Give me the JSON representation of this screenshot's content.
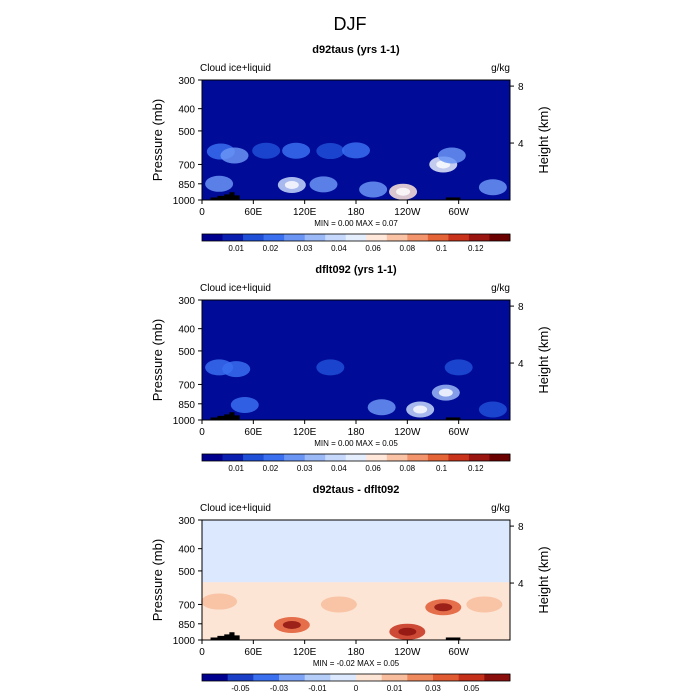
{
  "title": "DJF",
  "colors": {
    "blue_cmap": [
      "#00008f",
      "#0a1fb0",
      "#1f4fd6",
      "#3a6ff0",
      "#6a95f5",
      "#9bb8f7",
      "#c6d8fb",
      "#e5eefd",
      "#ffe7da",
      "#fbc3a6",
      "#f2946c",
      "#e46438",
      "#c9331b",
      "#9a1410",
      "#6a0000"
    ],
    "diff_cmap": [
      "#00008f",
      "#1a3fc6",
      "#3a6ff0",
      "#7da4f6",
      "#b4cdf9",
      "#dbe8fd",
      "#fde5d5",
      "#f8bd9c",
      "#ef8a5f",
      "#e05a32",
      "#c4301a",
      "#8a0f0c"
    ]
  },
  "chart_data": [
    {
      "type": "heatmap",
      "title": "d92taus (yrs 1-1)",
      "left_label": "Cloud ice+liquid",
      "right_label": "g/kg",
      "ylabel": "Pressure (mb)",
      "ylabel_right": "Height (km)",
      "x_ticks": [
        "0",
        "60E",
        "120E",
        "180",
        "120W",
        "60W"
      ],
      "x_values": [
        0,
        60,
        120,
        180,
        240,
        300
      ],
      "xlim": [
        0,
        360
      ],
      "y_ticks": [
        "300",
        "400",
        "500",
        "700",
        "850",
        "1000"
      ],
      "y_values": [
        300,
        400,
        500,
        700,
        850,
        1000
      ],
      "ylim": [
        1000,
        300
      ],
      "height_ticks": [
        "8",
        "4"
      ],
      "height_values": [
        8,
        4
      ],
      "stats": "MIN =     0.00   MAX =     0.07",
      "colorbar_labels": [
        "0.01",
        "0.02",
        "0.03",
        "0.04",
        "0.06",
        "0.08",
        "0.1",
        "0.12"
      ],
      "palette": "blue_cmap",
      "features": [
        {
          "lon": 22,
          "p": 615,
          "v": 0.028
        },
        {
          "lon": 38,
          "p": 640,
          "v": 0.03
        },
        {
          "lon": 75,
          "p": 610,
          "v": 0.02
        },
        {
          "lon": 110,
          "p": 610,
          "v": 0.022
        },
        {
          "lon": 150,
          "p": 612,
          "v": 0.02
        },
        {
          "lon": 180,
          "p": 608,
          "v": 0.022
        },
        {
          "lon": 105,
          "p": 860,
          "v": 0.055
        },
        {
          "lon": 142,
          "p": 855,
          "v": 0.03
        },
        {
          "lon": 20,
          "p": 850,
          "v": 0.035
        },
        {
          "lon": 235,
          "p": 920,
          "v": 0.07
        },
        {
          "lon": 200,
          "p": 900,
          "v": 0.035
        },
        {
          "lon": 282,
          "p": 700,
          "v": 0.06
        },
        {
          "lon": 292,
          "p": 640,
          "v": 0.03
        },
        {
          "lon": 340,
          "p": 880,
          "v": 0.03
        }
      ]
    },
    {
      "type": "heatmap",
      "title": "dflt092 (yrs 1-1)",
      "left_label": "Cloud ice+liquid",
      "right_label": "g/kg",
      "ylabel": "Pressure (mb)",
      "ylabel_right": "Height (km)",
      "x_ticks": [
        "0",
        "60E",
        "120E",
        "180",
        "120W",
        "60W"
      ],
      "x_values": [
        0,
        60,
        120,
        180,
        240,
        300
      ],
      "xlim": [
        0,
        360
      ],
      "y_ticks": [
        "300",
        "400",
        "500",
        "700",
        "850",
        "1000"
      ],
      "y_values": [
        300,
        400,
        500,
        700,
        850,
        1000
      ],
      "ylim": [
        1000,
        300
      ],
      "height_ticks": [
        "8",
        "4"
      ],
      "height_values": [
        8,
        4
      ],
      "stats": "MIN =     0.00   MAX =     0.05",
      "colorbar_labels": [
        "0.01",
        "0.02",
        "0.03",
        "0.04",
        "0.06",
        "0.08",
        "0.1",
        "0.12"
      ],
      "palette": "blue_cmap",
      "features": [
        {
          "lon": 20,
          "p": 590,
          "v": 0.025
        },
        {
          "lon": 40,
          "p": 600,
          "v": 0.022
        },
        {
          "lon": 150,
          "p": 590,
          "v": 0.018
        },
        {
          "lon": 300,
          "p": 590,
          "v": 0.018
        },
        {
          "lon": 255,
          "p": 900,
          "v": 0.05
        },
        {
          "lon": 210,
          "p": 880,
          "v": 0.03
        },
        {
          "lon": 285,
          "p": 760,
          "v": 0.045
        },
        {
          "lon": 50,
          "p": 860,
          "v": 0.025
        },
        {
          "lon": 340,
          "p": 900,
          "v": 0.02
        }
      ]
    },
    {
      "type": "heatmap",
      "title": "d92taus - dflt092",
      "left_label": "Cloud ice+liquid",
      "right_label": "g/kg",
      "ylabel": "Pressure (mb)",
      "ylabel_right": "Height (km)",
      "x_ticks": [
        "0",
        "60E",
        "120E",
        "180",
        "120W",
        "60W"
      ],
      "x_values": [
        0,
        60,
        120,
        180,
        240,
        300
      ],
      "xlim": [
        0,
        360
      ],
      "y_ticks": [
        "300",
        "400",
        "500",
        "700",
        "850",
        "1000"
      ],
      "y_values": [
        300,
        400,
        500,
        700,
        850,
        1000
      ],
      "ylim": [
        1000,
        300
      ],
      "height_ticks": [
        "8",
        "4"
      ],
      "height_values": [
        8,
        4
      ],
      "stats": "MIN =    -0.02   MAX =     0.05",
      "colorbar_labels": [
        "-0.05",
        "-0.03",
        "-0.01",
        "0",
        "0.01",
        "0.03",
        "0.05"
      ],
      "palette": "diff_cmap",
      "features": [
        {
          "lon": 105,
          "p": 860,
          "v": 0.03
        },
        {
          "lon": 240,
          "p": 920,
          "v": 0.04
        },
        {
          "lon": 282,
          "p": 720,
          "v": 0.03
        },
        {
          "lon": 20,
          "p": 680,
          "v": 0.01
        },
        {
          "lon": 160,
          "p": 700,
          "v": 0.01
        },
        {
          "lon": 330,
          "p": 700,
          "v": 0.01
        },
        {
          "lon": 200,
          "p": 450,
          "v": -0.005
        },
        {
          "lon": 60,
          "p": 420,
          "v": -0.004
        }
      ]
    }
  ]
}
